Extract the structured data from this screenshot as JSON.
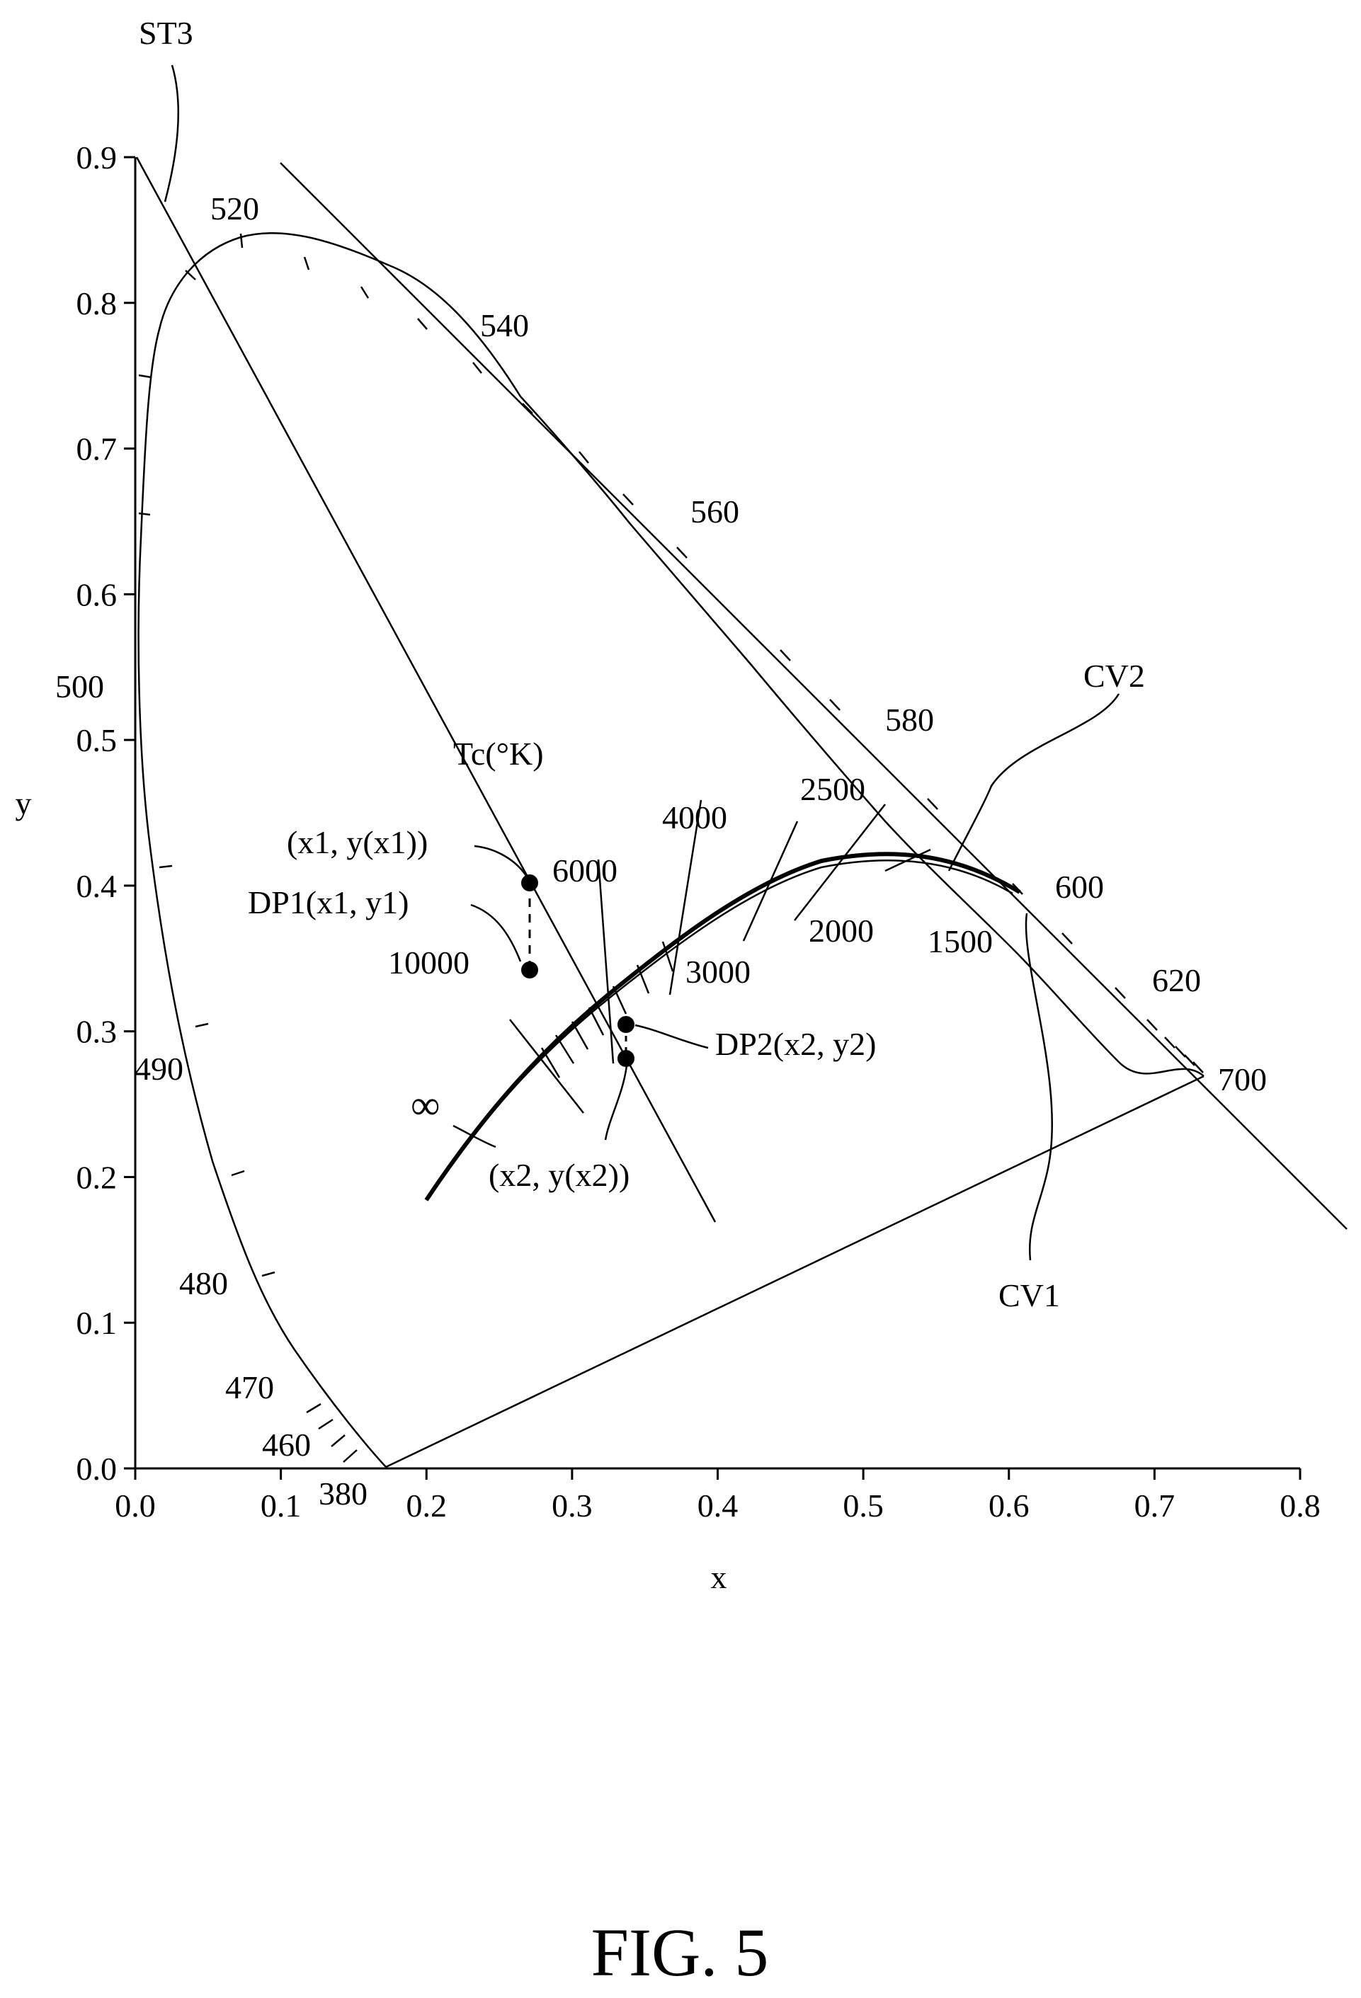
{
  "figure": {
    "caption": "FIG. 5",
    "axis_x_title": "x",
    "axis_y_title": "y",
    "x_tick_labels": [
      "0.0",
      "0.1",
      "0.2",
      "0.3",
      "0.4",
      "0.5",
      "0.6",
      "0.7",
      "0.8"
    ],
    "y_tick_labels": [
      "0.0",
      "0.1",
      "0.2",
      "0.3",
      "0.4",
      "0.5",
      "0.6",
      "0.7",
      "0.8",
      "0.9"
    ],
    "locus_wavelength_labels": [
      "380",
      "460",
      "470",
      "480",
      "490",
      "500",
      "520",
      "540",
      "560",
      "580",
      "600",
      "620",
      "700"
    ],
    "temperature_title": "Tc(°K)",
    "temperature_labels": [
      "∞",
      "10000",
      "6000",
      "4000",
      "3000",
      "2500",
      "2000",
      "1500"
    ],
    "reference_labels": {
      "st3": "ST3",
      "cv1": "CV1",
      "cv2": "CV2",
      "dp1": "DP1(x1, y1)",
      "dp2": "DP2(x2, y2)",
      "p1": "(x1, y(x1))",
      "p2": "(x2, y(x2))"
    }
  },
  "chart_data": {
    "type": "scatter",
    "xlabel": "x",
    "ylabel": "y",
    "xlim": [
      0.0,
      0.8
    ],
    "ylim": [
      0.0,
      0.9
    ],
    "grid": false,
    "spectral_locus": [
      {
        "wavelength": 380,
        "x": 0.174,
        "y": 0.005
      },
      {
        "wavelength": 460,
        "x": 0.144,
        "y": 0.03
      },
      {
        "wavelength": 470,
        "x": 0.124,
        "y": 0.058
      },
      {
        "wavelength": 480,
        "x": 0.091,
        "y": 0.133
      },
      {
        "wavelength": 490,
        "x": 0.045,
        "y": 0.295
      },
      {
        "wavelength": 500,
        "x": 0.008,
        "y": 0.538
      },
      {
        "wavelength": 520,
        "x": 0.074,
        "y": 0.834
      },
      {
        "wavelength": 540,
        "x": 0.23,
        "y": 0.754
      },
      {
        "wavelength": 560,
        "x": 0.373,
        "y": 0.624
      },
      {
        "wavelength": 580,
        "x": 0.512,
        "y": 0.487
      },
      {
        "wavelength": 600,
        "x": 0.627,
        "y": 0.373
      },
      {
        "wavelength": 620,
        "x": 0.691,
        "y": 0.308
      },
      {
        "wavelength": 700,
        "x": 0.735,
        "y": 0.265
      }
    ],
    "planckian_locus_cv1": [
      {
        "x": 0.199,
        "y": 0.188
      },
      {
        "x": 0.24,
        "y": 0.234
      },
      {
        "x": 0.28,
        "y": 0.288
      },
      {
        "x": 0.33,
        "y": 0.332
      },
      {
        "x": 0.38,
        "y": 0.377
      },
      {
        "x": 0.437,
        "y": 0.404
      },
      {
        "x": 0.476,
        "y": 0.414
      },
      {
        "x": 0.527,
        "y": 0.413
      },
      {
        "x": 0.586,
        "y": 0.393
      }
    ],
    "cv2_curve": [
      {
        "x": 0.199,
        "y": 0.189
      },
      {
        "x": 0.24,
        "y": 0.236
      },
      {
        "x": 0.28,
        "y": 0.29
      },
      {
        "x": 0.33,
        "y": 0.335
      },
      {
        "x": 0.38,
        "y": 0.38
      },
      {
        "x": 0.437,
        "y": 0.408
      },
      {
        "x": 0.476,
        "y": 0.418
      },
      {
        "x": 0.527,
        "y": 0.418
      },
      {
        "x": 0.586,
        "y": 0.398
      }
    ],
    "temperature_points_K": [
      {
        "T": 10000,
        "x": 0.281,
        "y": 0.288
      },
      {
        "T": 6000,
        "x": 0.322,
        "y": 0.332
      },
      {
        "T": 4000,
        "x": 0.38,
        "y": 0.377
      },
      {
        "T": 3000,
        "x": 0.437,
        "y": 0.404
      },
      {
        "T": 2500,
        "x": 0.476,
        "y": 0.414
      },
      {
        "T": 2000,
        "x": 0.527,
        "y": 0.413
      },
      {
        "T": 1500,
        "x": 0.586,
        "y": 0.393
      }
    ],
    "line_st3": [
      {
        "x": 0.0,
        "y": 0.9
      },
      {
        "x": 0.4,
        "y": 0.17
      }
    ],
    "line_upper": [
      {
        "x": 0.1,
        "y": 0.9
      },
      {
        "x": 0.83,
        "y": 0.17
      }
    ],
    "points": [
      {
        "label": "(x1, y(x1))",
        "x": 0.272,
        "y": 0.403
      },
      {
        "label": "DP1(x1, y1)",
        "x": 0.272,
        "y": 0.342
      },
      {
        "label": "DP2(x2, y2)",
        "x": 0.339,
        "y": 0.307
      },
      {
        "label": "(x2, y(x2))",
        "x": 0.339,
        "y": 0.283
      }
    ]
  }
}
